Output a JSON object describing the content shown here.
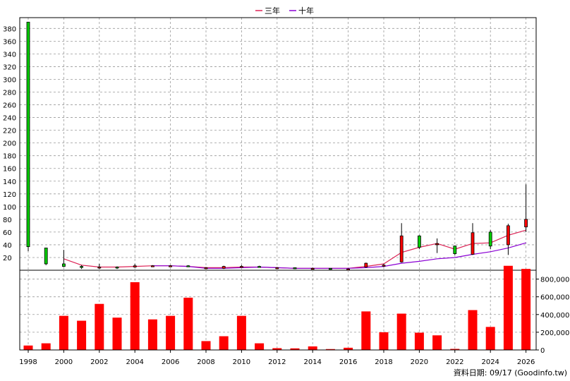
{
  "chart_data": [
    {
      "type": "candlestick",
      "legend": [
        {
          "name": "三年",
          "color": "#dd2255"
        },
        {
          "name": "十年",
          "color": "#8a00d4"
        }
      ],
      "y_ticks": [
        20,
        40,
        60,
        80,
        100,
        120,
        140,
        160,
        180,
        200,
        220,
        240,
        260,
        280,
        300,
        320,
        340,
        360,
        380
      ],
      "ylim": [
        0,
        397
      ],
      "grid": true,
      "up_color": "#ff0000",
      "down_color": "#00cc00",
      "candles": [
        {
          "year": 1998,
          "open": 390,
          "close": 37,
          "high": 390,
          "low": 30
        },
        {
          "year": 1999,
          "open": 35,
          "close": 10,
          "high": 35,
          "low": 8
        },
        {
          "year": 2000,
          "open": 10,
          "close": 6,
          "high": 32,
          "low": 5
        },
        {
          "year": 2001,
          "open": 6,
          "close": 5,
          "high": 8,
          "low": 2
        },
        {
          "year": 2002,
          "open": 5,
          "close": 5,
          "high": 10,
          "low": 2
        },
        {
          "year": 2003,
          "open": 5,
          "close": 4,
          "high": 6,
          "low": 2
        },
        {
          "year": 2004,
          "open": 5,
          "close": 7,
          "high": 10,
          "low": 4
        },
        {
          "year": 2005,
          "open": 7,
          "close": 7,
          "high": 8,
          "low": 5
        },
        {
          "year": 2006,
          "open": 7,
          "close": 7,
          "high": 8,
          "low": 6
        },
        {
          "year": 2007,
          "open": 7,
          "close": 6,
          "high": 8,
          "low": 5
        },
        {
          "year": 2008,
          "open": 4,
          "close": 4,
          "high": 5,
          "low": 2
        },
        {
          "year": 2009,
          "open": 3,
          "close": 6,
          "high": 7,
          "low": 2
        },
        {
          "year": 2010,
          "open": 6,
          "close": 6,
          "high": 8,
          "low": 4
        },
        {
          "year": 2011,
          "open": 6,
          "close": 5,
          "high": 7,
          "low": 4
        },
        {
          "year": 2012,
          "open": 4,
          "close": 4,
          "high": 5,
          "low": 3
        },
        {
          "year": 2013,
          "open": 4,
          "close": 3,
          "high": 4,
          "low": 2
        },
        {
          "year": 2014,
          "open": 3,
          "close": 3,
          "high": 4,
          "low": 2
        },
        {
          "year": 2015,
          "open": 3,
          "close": 2,
          "high": 3,
          "low": 1
        },
        {
          "year": 2016,
          "open": 2,
          "close": 2,
          "high": 3,
          "low": 1
        },
        {
          "year": 2017,
          "open": 5,
          "close": 11,
          "high": 12,
          "low": 4
        },
        {
          "year": 2018,
          "open": 8,
          "close": 8,
          "high": 10,
          "low": 5
        },
        {
          "year": 2019,
          "open": 13,
          "close": 54,
          "high": 74,
          "low": 12
        },
        {
          "year": 2020,
          "open": 54,
          "close": 36,
          "high": 55,
          "low": 33
        },
        {
          "year": 2021,
          "open": 40,
          "close": 42,
          "high": 50,
          "low": 27
        },
        {
          "year": 2022,
          "open": 38,
          "close": 26,
          "high": 39,
          "low": 24
        },
        {
          "year": 2023,
          "open": 25,
          "close": 59,
          "high": 74,
          "low": 24
        },
        {
          "year": 2024,
          "open": 60,
          "close": 38,
          "high": 63,
          "low": 33
        },
        {
          "year": 2025,
          "open": 40,
          "close": 70,
          "high": 73,
          "low": 24
        },
        {
          "year": 2026,
          "open": 68,
          "close": 80,
          "high": 135,
          "low": 60
        }
      ],
      "series": [
        {
          "name": "三年",
          "color": "#dd2255",
          "values": [
            null,
            null,
            18,
            8,
            5,
            5,
            6,
            7,
            7,
            6,
            4,
            4,
            5,
            5,
            4,
            3,
            3,
            3,
            3,
            6,
            10,
            28,
            36,
            42,
            33,
            42,
            43,
            55,
            63
          ]
        },
        {
          "name": "十年",
          "color": "#8a00d4",
          "values": [
            null,
            null,
            null,
            null,
            null,
            null,
            null,
            7,
            7,
            6,
            3,
            3,
            4,
            5,
            4,
            3,
            3,
            3,
            3,
            4,
            6,
            11,
            14,
            18,
            20,
            25,
            29,
            35,
            43
          ]
        }
      ]
    },
    {
      "type": "bar",
      "color": "#ff0000",
      "y_ticks": [
        0,
        200000,
        400000,
        600000,
        800000
      ],
      "y_tick_labels": [
        "0",
        "200,000",
        "400,000",
        "600,000",
        "800,000"
      ],
      "ylim": [
        0,
        900000
      ],
      "grid": true,
      "categories": [
        1998,
        1999,
        2000,
        2001,
        2002,
        2003,
        2004,
        2005,
        2006,
        2007,
        2008,
        2009,
        2010,
        2011,
        2012,
        2013,
        2014,
        2015,
        2016,
        2017,
        2018,
        2019,
        2020,
        2021,
        2022,
        2023,
        2024,
        2025,
        2026
      ],
      "values": [
        50000,
        75000,
        385000,
        330000,
        520000,
        365000,
        765000,
        345000,
        385000,
        590000,
        100000,
        155000,
        385000,
        75000,
        20000,
        18000,
        40000,
        10000,
        25000,
        435000,
        200000,
        410000,
        195000,
        165000,
        12000,
        450000,
        260000,
        950000,
        915000
      ]
    }
  ],
  "x_ticks": [
    "1998",
    "2000",
    "2002",
    "2004",
    "2006",
    "2008",
    "2010",
    "2012",
    "2014",
    "2016",
    "2018",
    "2020",
    "2022",
    "2024",
    "2026"
  ],
  "source_text": "資料日期: 09/17  (Goodinfo.tw)"
}
